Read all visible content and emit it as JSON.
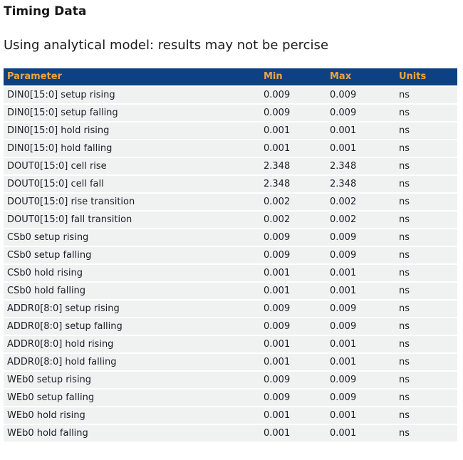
{
  "page": {
    "title": "Timing Data",
    "subtitle": "Using analytical model: results may not be percise"
  },
  "colors": {
    "table_header_bg": "#0e4183",
    "table_header_text": "#efa53c",
    "row_bg": "#f0f1f1",
    "cell_text": "#1a1d24"
  },
  "table": {
    "columns": [
      "Parameter",
      "Min",
      "Max",
      "Units"
    ],
    "rows": [
      {
        "parameter": "DIN0[15:0] setup rising",
        "min": "0.009",
        "max": "0.009",
        "units": "ns"
      },
      {
        "parameter": "DIN0[15:0] setup falling",
        "min": "0.009",
        "max": "0.009",
        "units": "ns"
      },
      {
        "parameter": "DIN0[15:0] hold rising",
        "min": "0.001",
        "max": "0.001",
        "units": "ns"
      },
      {
        "parameter": "DIN0[15:0] hold falling",
        "min": "0.001",
        "max": "0.001",
        "units": "ns"
      },
      {
        "parameter": "DOUT0[15:0] cell rise",
        "min": "2.348",
        "max": "2.348",
        "units": "ns"
      },
      {
        "parameter": "DOUT0[15:0] cell fall",
        "min": "2.348",
        "max": "2.348",
        "units": "ns"
      },
      {
        "parameter": "DOUT0[15:0] rise transition",
        "min": "0.002",
        "max": "0.002",
        "units": "ns"
      },
      {
        "parameter": "DOUT0[15:0] fall transition",
        "min": "0.002",
        "max": "0.002",
        "units": "ns"
      },
      {
        "parameter": "CSb0 setup rising",
        "min": "0.009",
        "max": "0.009",
        "units": "ns"
      },
      {
        "parameter": "CSb0 setup falling",
        "min": "0.009",
        "max": "0.009",
        "units": "ns"
      },
      {
        "parameter": "CSb0 hold rising",
        "min": "0.001",
        "max": "0.001",
        "units": "ns"
      },
      {
        "parameter": "CSb0 hold falling",
        "min": "0.001",
        "max": "0.001",
        "units": "ns"
      },
      {
        "parameter": "ADDR0[8:0] setup rising",
        "min": "0.009",
        "max": "0.009",
        "units": "ns"
      },
      {
        "parameter": "ADDR0[8:0] setup falling",
        "min": "0.009",
        "max": "0.009",
        "units": "ns"
      },
      {
        "parameter": "ADDR0[8:0] hold rising",
        "min": "0.001",
        "max": "0.001",
        "units": "ns"
      },
      {
        "parameter": "ADDR0[8:0] hold falling",
        "min": "0.001",
        "max": "0.001",
        "units": "ns"
      },
      {
        "parameter": "WEb0 setup rising",
        "min": "0.009",
        "max": "0.009",
        "units": "ns"
      },
      {
        "parameter": "WEb0 setup falling",
        "min": "0.009",
        "max": "0.009",
        "units": "ns"
      },
      {
        "parameter": "WEb0 hold rising",
        "min": "0.001",
        "max": "0.001",
        "units": "ns"
      },
      {
        "parameter": "WEb0 hold falling",
        "min": "0.001",
        "max": "0.001",
        "units": "ns"
      }
    ]
  }
}
